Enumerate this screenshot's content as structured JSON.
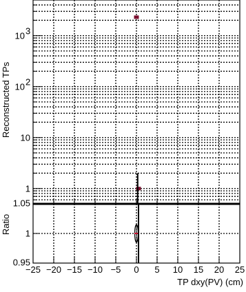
{
  "chart_data": [
    {
      "type": "scatter",
      "panel": "top",
      "ylabel": "Reconstructed TPs",
      "yscale": "log",
      "ylim": [
        0.5,
        5000
      ],
      "xlim": [
        -25,
        25
      ],
      "grid": true,
      "y_tick_labels": [
        {
          "base": "10",
          "exp": "3",
          "value": 1000
        },
        {
          "base": "10",
          "exp": "2",
          "value": 100
        },
        {
          "base": "10",
          "exp": "",
          "value": 10
        },
        {
          "base": "1",
          "exp": "",
          "value": 1
        }
      ],
      "series": [
        {
          "color": "#7a0f2e",
          "points": [
            {
              "x": 0,
              "y": 2300
            },
            {
              "x": 0.5,
              "y": 1
            }
          ]
        },
        {
          "color": "#000000",
          "points": [
            {
              "x": 0.3,
              "y_low": 0.5,
              "y_high": 2.0
            }
          ]
        }
      ]
    },
    {
      "type": "scatter",
      "panel": "bottom",
      "ylabel": "Ratio",
      "xlabel": "TP dxy(PV) (cm)",
      "ylim": [
        0.95,
        1.05
      ],
      "xlim": [
        -25,
        25
      ],
      "grid": true,
      "y_tick_labels": [
        "1.05",
        "1",
        "0.95"
      ],
      "y_tick_values": [
        1.05,
        1.0,
        0.95
      ],
      "x_tick_labels": [
        "−25",
        "−20",
        "−15",
        "−10",
        "−5",
        "0",
        "5",
        "10",
        "15",
        "20",
        "25"
      ],
      "x_tick_values": [
        -25,
        -20,
        -15,
        -10,
        -5,
        0,
        5,
        10,
        15,
        20,
        25
      ],
      "series": [
        {
          "color": "#c8102e",
          "points": [
            {
              "x": 0,
              "y": 1.0,
              "y_low": 0.985,
              "y_high": 1.015
            }
          ]
        },
        {
          "color": "#000000",
          "points": [
            {
              "x": 0.5,
              "y_low": 0.95,
              "y_high": 1.05
            }
          ]
        }
      ]
    }
  ]
}
